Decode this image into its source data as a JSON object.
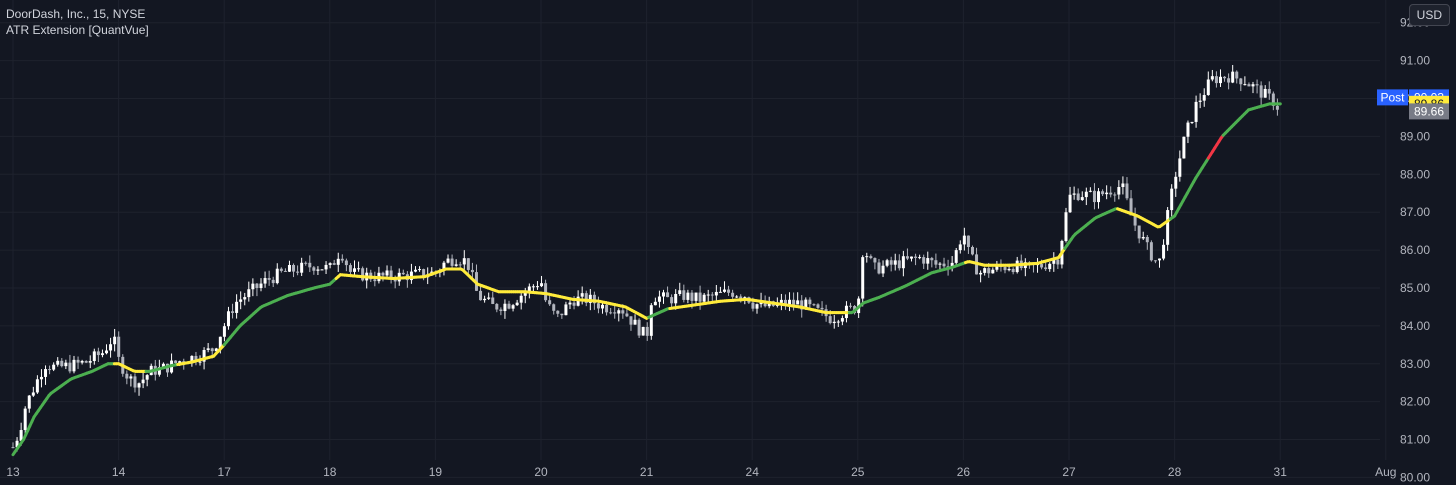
{
  "legend": {
    "symbol_line": "DoorDash, Inc., 15, NYSE",
    "indicator_line": "ATR Extension [QuantVue]"
  },
  "toolbar": {
    "currency_label": "USD"
  },
  "colors": {
    "background": "#131722",
    "grid": "#1e222d",
    "candle_up": "#ffffff",
    "candle_down": "#b2b5be",
    "line_green": "#4caf50",
    "line_yellow": "#ffeb3b",
    "line_red": "#f23645",
    "post_tag": "#2962ff",
    "current_tag": "#787b86"
  },
  "chart_data": {
    "type": "candlestick",
    "ylim": [
      79.8,
      92.6
    ],
    "y_ticks": [
      80,
      81,
      82,
      83,
      84,
      85,
      86,
      87,
      88,
      89,
      90,
      91,
      92
    ],
    "y_tick_labels": [
      "80.00",
      "81.00",
      "82.00",
      "83.00",
      "84.00",
      "85.00",
      "86.00",
      "87.00",
      "88.00",
      "89.00",
      "90.00",
      "91.00",
      "92.00"
    ],
    "x_ticks": [
      "13",
      "14",
      "17",
      "18",
      "19",
      "20",
      "21",
      "24",
      "25",
      "26",
      "27",
      "28",
      "31",
      "Aug"
    ],
    "x_tick_positions": [
      0,
      1,
      2,
      3,
      4,
      5,
      6,
      7,
      8,
      9,
      10,
      11,
      12,
      13
    ],
    "x_range": [
      0,
      13.55
    ],
    "price_points": [
      [
        0.0,
        80.8
      ],
      [
        0.06,
        81.2
      ],
      [
        0.12,
        81.9
      ],
      [
        0.22,
        82.5
      ],
      [
        0.3,
        83.0
      ],
      [
        0.4,
        82.9
      ],
      [
        0.55,
        82.95
      ],
      [
        0.7,
        83.05
      ],
      [
        0.85,
        83.3
      ],
      [
        0.95,
        83.7
      ],
      [
        1.0,
        83.1
      ],
      [
        1.1,
        82.6
      ],
      [
        1.2,
        82.5
      ],
      [
        1.3,
        82.8
      ],
      [
        1.45,
        82.9
      ],
      [
        1.6,
        83.1
      ],
      [
        1.75,
        83.2
      ],
      [
        1.9,
        83.4
      ],
      [
        2.0,
        84.0
      ],
      [
        2.1,
        84.6
      ],
      [
        2.25,
        84.9
      ],
      [
        2.4,
        85.2
      ],
      [
        2.55,
        85.4
      ],
      [
        2.7,
        85.5
      ],
      [
        2.85,
        85.6
      ],
      [
        3.0,
        85.5
      ],
      [
        3.1,
        86.0
      ],
      [
        3.2,
        85.4
      ],
      [
        3.4,
        85.3
      ],
      [
        3.6,
        85.3
      ],
      [
        3.8,
        85.35
      ],
      [
        4.0,
        85.4
      ],
      [
        4.1,
        85.7
      ],
      [
        4.2,
        85.8
      ],
      [
        4.3,
        85.7
      ],
      [
        4.4,
        84.8
      ],
      [
        4.55,
        84.5
      ],
      [
        4.7,
        84.6
      ],
      [
        4.85,
        84.9
      ],
      [
        5.0,
        85.2
      ],
      [
        5.05,
        84.6
      ],
      [
        5.15,
        84.2
      ],
      [
        5.3,
        84.7
      ],
      [
        5.45,
        84.7
      ],
      [
        5.6,
        84.5
      ],
      [
        5.75,
        84.5
      ],
      [
        5.9,
        84.0
      ],
      [
        6.0,
        83.7
      ],
      [
        6.05,
        84.8
      ],
      [
        6.2,
        84.7
      ],
      [
        6.35,
        84.8
      ],
      [
        6.5,
        84.7
      ],
      [
        6.65,
        84.8
      ],
      [
        6.8,
        84.9
      ],
      [
        6.95,
        84.8
      ],
      [
        7.0,
        84.6
      ],
      [
        7.15,
        84.5
      ],
      [
        7.3,
        84.6
      ],
      [
        7.45,
        84.6
      ],
      [
        7.6,
        84.4
      ],
      [
        7.75,
        84.2
      ],
      [
        7.9,
        84.4
      ],
      [
        8.0,
        84.5
      ],
      [
        8.05,
        86.1
      ],
      [
        8.15,
        85.5
      ],
      [
        8.3,
        85.6
      ],
      [
        8.45,
        85.7
      ],
      [
        8.6,
        85.8
      ],
      [
        8.75,
        85.6
      ],
      [
        8.9,
        85.7
      ],
      [
        9.0,
        86.5
      ],
      [
        9.05,
        85.9
      ],
      [
        9.15,
        85.4
      ],
      [
        9.3,
        85.5
      ],
      [
        9.45,
        85.6
      ],
      [
        9.6,
        85.5
      ],
      [
        9.75,
        85.6
      ],
      [
        9.9,
        85.8
      ],
      [
        10.0,
        87.4
      ],
      [
        10.1,
        87.5
      ],
      [
        10.25,
        87.4
      ],
      [
        10.4,
        87.6
      ],
      [
        10.5,
        87.7
      ],
      [
        10.6,
        86.8
      ],
      [
        10.75,
        86.0
      ],
      [
        10.85,
        85.6
      ],
      [
        11.0,
        87.9
      ],
      [
        11.1,
        89.0
      ],
      [
        11.2,
        89.8
      ],
      [
        11.35,
        90.5
      ],
      [
        11.5,
        90.6
      ],
      [
        11.65,
        90.5
      ],
      [
        11.8,
        90.2
      ],
      [
        11.95,
        89.9
      ],
      [
        12.0,
        89.66
      ]
    ],
    "series": [
      {
        "type": "line",
        "points": [
          [
            0.0,
            80.6
          ],
          [
            0.1,
            81.0
          ],
          [
            0.2,
            81.6
          ],
          [
            0.35,
            82.2
          ],
          [
            0.55,
            82.6
          ],
          [
            0.75,
            82.8
          ],
          [
            0.9,
            83.0
          ],
          [
            1.0,
            83.0
          ],
          [
            1.15,
            82.8
          ],
          [
            1.3,
            82.8
          ],
          [
            1.5,
            82.95
          ],
          [
            1.7,
            83.05
          ],
          [
            1.9,
            83.2
          ],
          [
            2.0,
            83.5
          ],
          [
            2.15,
            84.0
          ],
          [
            2.35,
            84.5
          ],
          [
            2.6,
            84.8
          ],
          [
            2.85,
            85.0
          ],
          [
            3.0,
            85.1
          ],
          [
            3.1,
            85.35
          ],
          [
            3.3,
            85.3
          ],
          [
            3.6,
            85.25
          ],
          [
            3.9,
            85.3
          ],
          [
            4.1,
            85.5
          ],
          [
            4.25,
            85.5
          ],
          [
            4.4,
            85.1
          ],
          [
            4.6,
            84.9
          ],
          [
            4.85,
            84.9
          ],
          [
            5.05,
            84.85
          ],
          [
            5.3,
            84.7
          ],
          [
            5.55,
            84.65
          ],
          [
            5.8,
            84.5
          ],
          [
            6.0,
            84.2
          ],
          [
            6.2,
            84.45
          ],
          [
            6.45,
            84.55
          ],
          [
            6.7,
            84.65
          ],
          [
            6.95,
            84.7
          ],
          [
            7.2,
            84.6
          ],
          [
            7.45,
            84.5
          ],
          [
            7.7,
            84.35
          ],
          [
            7.95,
            84.35
          ],
          [
            8.05,
            84.6
          ],
          [
            8.2,
            84.75
          ],
          [
            8.45,
            85.05
          ],
          [
            8.7,
            85.4
          ],
          [
            8.9,
            85.55
          ],
          [
            9.05,
            85.7
          ],
          [
            9.2,
            85.6
          ],
          [
            9.45,
            85.6
          ],
          [
            9.7,
            85.65
          ],
          [
            9.9,
            85.8
          ],
          [
            10.05,
            86.4
          ],
          [
            10.25,
            86.85
          ],
          [
            10.45,
            87.1
          ],
          [
            10.65,
            86.9
          ],
          [
            10.85,
            86.6
          ],
          [
            11.0,
            86.9
          ],
          [
            11.2,
            87.9
          ],
          [
            11.45,
            89.0
          ],
          [
            11.7,
            89.7
          ],
          [
            11.9,
            89.86
          ],
          [
            12.0,
            89.86
          ]
        ],
        "colors_by_x": [
          [
            0.0,
            "green"
          ],
          [
            0.95,
            "yellow"
          ],
          [
            1.25,
            "green"
          ],
          [
            1.55,
            "yellow"
          ],
          [
            2.0,
            "green"
          ],
          [
            3.05,
            "yellow"
          ],
          [
            6.0,
            "green"
          ],
          [
            6.2,
            "yellow"
          ],
          [
            7.9,
            "green"
          ],
          [
            9.0,
            "yellow"
          ],
          [
            9.95,
            "green"
          ],
          [
            10.45,
            "yellow"
          ],
          [
            10.95,
            "green"
          ],
          [
            11.3,
            "red"
          ],
          [
            11.45,
            "green"
          ]
        ]
      }
    ],
    "price_tags": [
      {
        "label": "Post",
        "value": "90.03",
        "y": 90.03,
        "color": "#2962ff",
        "text_color": "#ffffff"
      },
      {
        "label": "",
        "value": "89.86",
        "y": 89.86,
        "color": "#ffeb3b",
        "text_color": "#131722"
      },
      {
        "label": "",
        "value": "89.66",
        "y": 89.66,
        "color": "#787b86",
        "text_color": "#ffffff"
      }
    ]
  }
}
